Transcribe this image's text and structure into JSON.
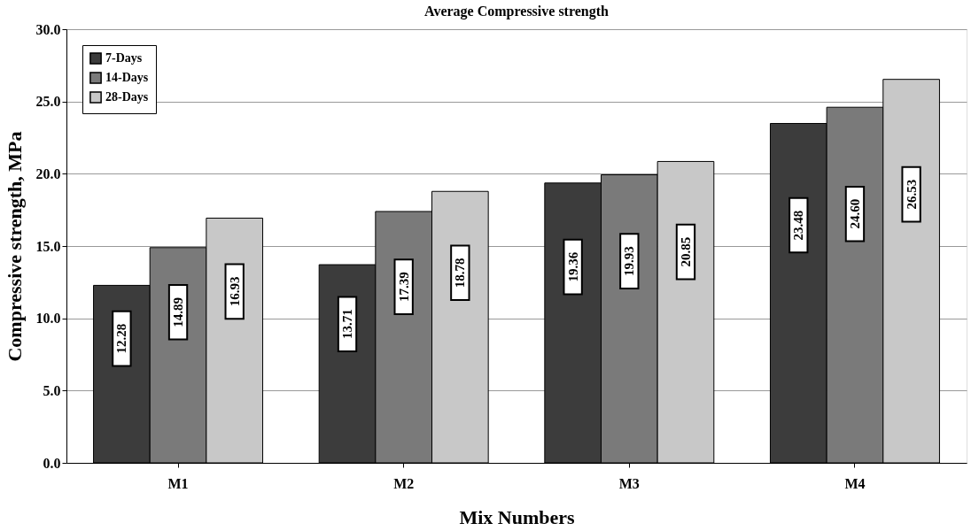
{
  "chart_data": {
    "type": "bar",
    "title": "Average Compressive strength",
    "xlabel": "Mix Numbers",
    "ylabel": "Compressive strength, MPa",
    "categories": [
      "M1",
      "M2",
      "M3",
      "M4"
    ],
    "series": [
      {
        "name": "7-Days",
        "color": "#3c3c3c",
        "values": [
          12.28,
          13.71,
          19.36,
          23.48
        ]
      },
      {
        "name": "14-Days",
        "color": "#7a7a7a",
        "values": [
          14.89,
          17.39,
          19.93,
          24.6
        ]
      },
      {
        "name": "28-Days",
        "color": "#c8c8c8",
        "values": [
          16.93,
          18.78,
          20.85,
          26.53
        ]
      }
    ],
    "ylim": [
      0,
      30
    ],
    "yticks": [
      {
        "value": 0,
        "label": "0.0"
      },
      {
        "value": 5,
        "label": "5.0"
      },
      {
        "value": 10,
        "label": "10.0"
      },
      {
        "value": 15,
        "label": "15.0"
      },
      {
        "value": 20,
        "label": "20.0"
      },
      {
        "value": 25,
        "label": "25.0"
      },
      {
        "value": 30,
        "label": "30.0"
      }
    ],
    "value_labels": [
      [
        "12.28",
        "13.71",
        "19.36",
        "23.48"
      ],
      [
        "14.89",
        "17.39",
        "19.93",
        "24.60"
      ],
      [
        "16.93",
        "18.78",
        "20.85",
        "26.53"
      ]
    ],
    "grid": "y",
    "legend": "top left"
  }
}
